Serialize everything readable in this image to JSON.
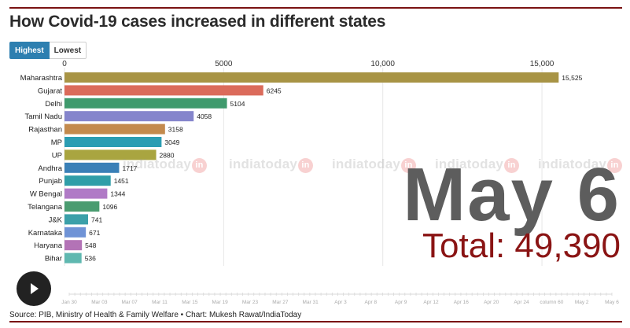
{
  "header": {
    "title": "How Covid-19 cases increased in different states"
  },
  "toggle": {
    "highest_label": "Highest",
    "lowest_label": "Lowest"
  },
  "overlay": {
    "date": "May 6",
    "total": "Total: 49,390"
  },
  "watermark": {
    "brand": "indiatoday",
    "badge": "in"
  },
  "footer": {
    "source": "Source: PIB, Ministry of Health & Family Welfare • Chart: Mukesh Rawat/IndiaToday"
  },
  "chart_data": {
    "type": "bar",
    "orientation": "horizontal",
    "title": "How Covid-19 cases increased in different states",
    "xlim": [
      0,
      17000
    ],
    "x_ticks": [
      0,
      5000,
      10000,
      15000
    ],
    "x_tick_labels": [
      "0",
      "5000",
      "10,000",
      "15,000"
    ],
    "grid": true,
    "categories": [
      "Maharashtra",
      "Gujarat",
      "Delhi",
      "Tamil Nadu",
      "Rajasthan",
      "MP",
      "UP",
      "Andhra",
      "Punjab",
      "W Bengal",
      "Telangana",
      "J&K",
      "Karnataka",
      "Haryana",
      "Bihar"
    ],
    "values": [
      15525,
      6245,
      5104,
      4058,
      3158,
      3049,
      2880,
      1717,
      1451,
      1344,
      1096,
      741,
      671,
      548,
      536
    ],
    "value_labels": [
      "15,525",
      "6245",
      "5104",
      "4058",
      "3158",
      "3049",
      "2880",
      "1717",
      "1451",
      "1344",
      "1096",
      "741",
      "671",
      "548",
      "536"
    ],
    "colors": [
      "#a89445",
      "#db6b5b",
      "#3f9a6d",
      "#8585cc",
      "#c38a4d",
      "#2b9db3",
      "#a9a540",
      "#3a80b7",
      "#2f9ea8",
      "#b07ac6",
      "#4a9c70",
      "#3ba0a9",
      "#6f93d6",
      "#b373b6",
      "#5fb8b0"
    ],
    "timeline_labels": [
      "Jan 30",
      "Mar 03",
      "Mar 07",
      "Mar 11",
      "Mar 15",
      "Mar 19",
      "Mar 23",
      "Mar 27",
      "Mar 31",
      "Apr 3",
      "Apr 8",
      "Apr 9",
      "Apr 12",
      "Apr 16",
      "Apr 20",
      "Apr 24",
      "column 60",
      "May 2",
      "May 6"
    ]
  }
}
